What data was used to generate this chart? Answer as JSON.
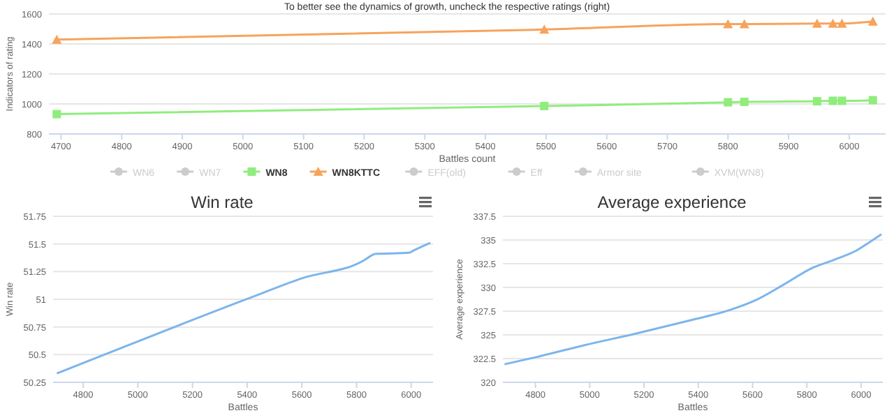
{
  "chart_data": [
    {
      "type": "line",
      "title": "To better see the dynamics of growth, uncheck the respective ratings (right)",
      "xlabel": "Battles count",
      "ylabel": "Indicators of rating",
      "xlim": [
        4680,
        6060
      ],
      "xticks": [
        4700,
        4800,
        4900,
        5000,
        5100,
        5200,
        5300,
        5400,
        5500,
        5600,
        5700,
        5800,
        5900,
        6000
      ],
      "ylim": [
        800,
        1600
      ],
      "yticks": [
        800,
        1000,
        1200,
        1400,
        1600
      ],
      "grid": "y",
      "legend": "bottom",
      "x": [
        4693,
        5497,
        5800,
        5827,
        5947,
        5973,
        5988,
        6039
      ],
      "series": [
        {
          "name": "WN6",
          "color": "#cccccc",
          "values": [
            null,
            null,
            null,
            null,
            null,
            null,
            null,
            null
          ]
        },
        {
          "name": "WN7",
          "color": "#cccccc",
          "values": [
            null,
            null,
            null,
            null,
            null,
            null,
            null,
            null
          ]
        },
        {
          "name": "WN8",
          "color": "#90ed7d",
          "marker": "square",
          "values": [
            932,
            986,
            1011,
            1014,
            1018,
            1021,
            1021,
            1025
          ]
        },
        {
          "name": "WN8KTTC",
          "color": "#f7a35c",
          "marker": "triangle",
          "values": [
            1429,
            1496,
            1532,
            1532,
            1536,
            1536,
            1536,
            1550
          ]
        },
        {
          "name": "EFF(old)",
          "color": "#cccccc",
          "values": [
            null,
            null,
            null,
            null,
            null,
            null,
            null,
            null
          ]
        },
        {
          "name": "Eff",
          "color": "#cccccc",
          "values": [
            null,
            null,
            null,
            null,
            null,
            null,
            null,
            null
          ]
        },
        {
          "name": "Armor site",
          "color": "#cccccc",
          "values": [
            null,
            null,
            null,
            null,
            null,
            null,
            null,
            null
          ]
        },
        {
          "name": "XVM(WN8)",
          "color": "#cccccc",
          "values": [
            null,
            null,
            null,
            null,
            null,
            null,
            null,
            null
          ]
        }
      ]
    },
    {
      "type": "line",
      "title": "Win rate",
      "xlabel": "Battles",
      "ylabel": "Win rate",
      "xlim": [
        4690,
        6080
      ],
      "xticks": [
        4800,
        5000,
        5200,
        5400,
        5600,
        5800,
        6000
      ],
      "ylim": [
        50.25,
        51.75
      ],
      "yticks": [
        50.25,
        50.5,
        50.75,
        51,
        51.25,
        51.5,
        51.75
      ],
      "grid": "y",
      "x": [
        4704,
        5407,
        5601,
        5826,
        5851,
        5868,
        5992,
        6008,
        6070
      ],
      "series": [
        {
          "color": "#7cb5ec",
          "values": [
            50.33,
            51.01,
            51.19,
            51.35,
            51.39,
            51.41,
            51.42,
            51.44,
            51.51
          ]
        }
      ]
    },
    {
      "type": "line",
      "title": "Average experience",
      "xlabel": "Battles",
      "ylabel": "Average experience",
      "xlim": [
        4680,
        6080
      ],
      "xticks": [
        4800,
        5000,
        5200,
        5400,
        5600,
        5800,
        6000
      ],
      "ylim": [
        320,
        337.5
      ],
      "yticks": [
        320,
        322.5,
        325,
        327.5,
        330,
        332.5,
        335,
        337.5
      ],
      "grid": "y",
      "x": [
        4686,
        4795,
        4979,
        5180,
        5380,
        5514,
        5615,
        5715,
        5816,
        5899,
        5983,
        6033,
        6075
      ],
      "series": [
        {
          "color": "#7cb5ec",
          "values": [
            321.9,
            322.6,
            323.9,
            325.2,
            326.6,
            327.6,
            328.7,
            330.3,
            332,
            332.9,
            333.9,
            334.8,
            335.6
          ]
        }
      ]
    }
  ]
}
